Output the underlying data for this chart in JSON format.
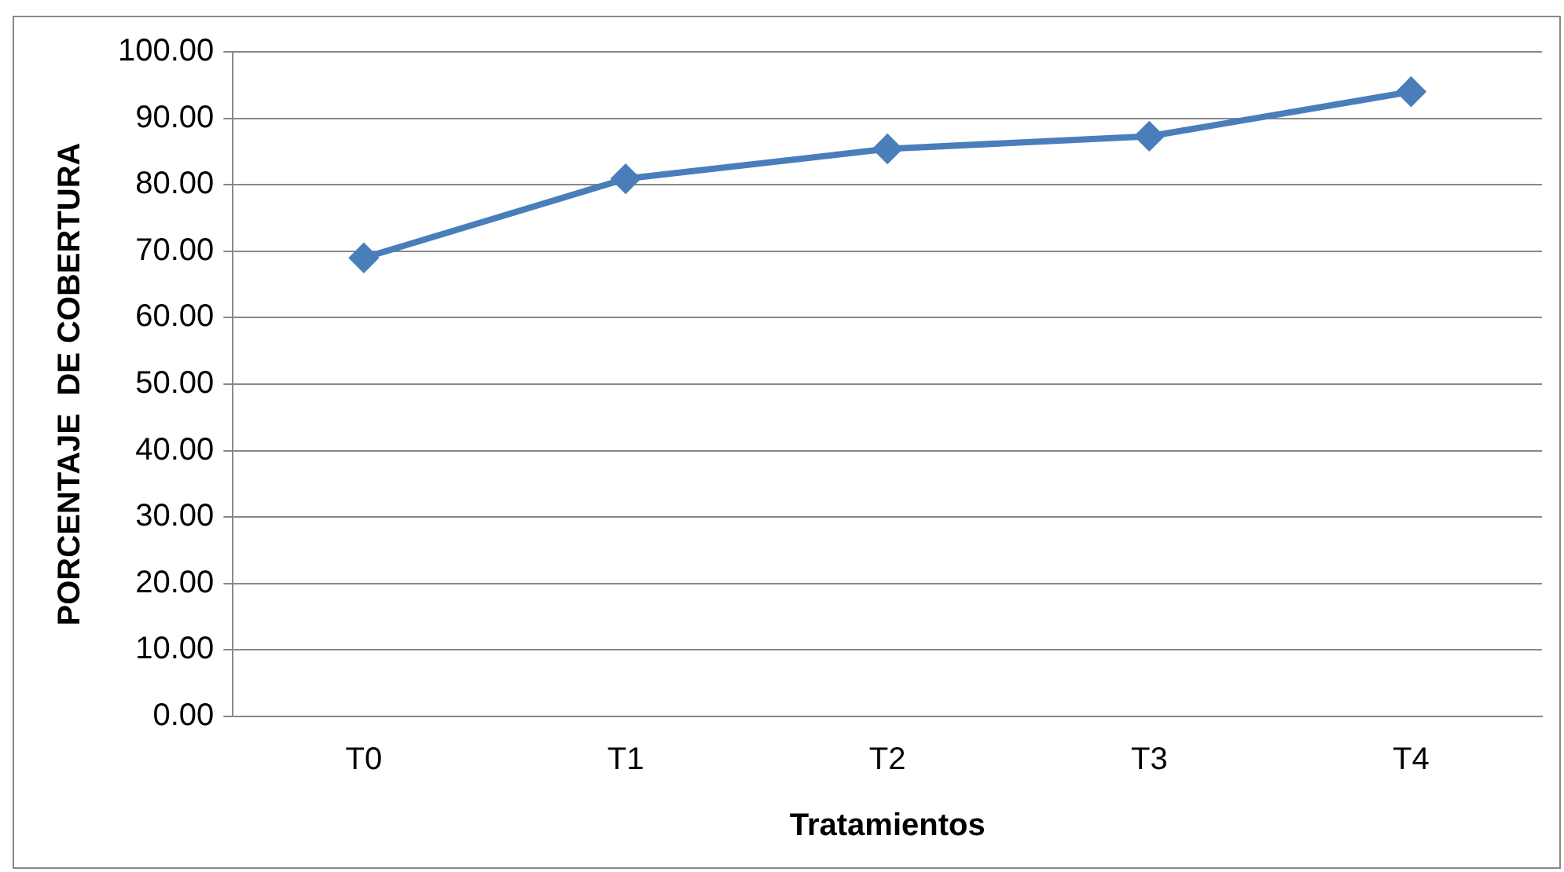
{
  "chart_data": {
    "type": "line",
    "xlabel": "Tratamientos",
    "ylabel": "PORCENTAJE  DE COBERTURA",
    "categories": [
      "T0",
      "T1",
      "T2",
      "T3",
      "T4"
    ],
    "series": [
      {
        "color": "#4a7ebb",
        "values": [
          69.0,
          80.9,
          85.4,
          87.3,
          94.0
        ]
      }
    ],
    "ylim": [
      0,
      100
    ],
    "yticks": [
      {
        "value": 0,
        "label": "0.00"
      },
      {
        "value": 10,
        "label": "10.00"
      },
      {
        "value": 20,
        "label": "20.00"
      },
      {
        "value": 30,
        "label": "30.00"
      },
      {
        "value": 40,
        "label": "40.00"
      },
      {
        "value": 50,
        "label": "50.00"
      },
      {
        "value": 60,
        "label": "60.00"
      },
      {
        "value": 70,
        "label": "70.00"
      },
      {
        "value": 80,
        "label": "80.00"
      },
      {
        "value": 90,
        "label": "90.00"
      },
      {
        "value": 100,
        "label": "100.00"
      }
    ],
    "grid": "y",
    "legend": false,
    "marker": "diamond",
    "line_style": "solid"
  }
}
